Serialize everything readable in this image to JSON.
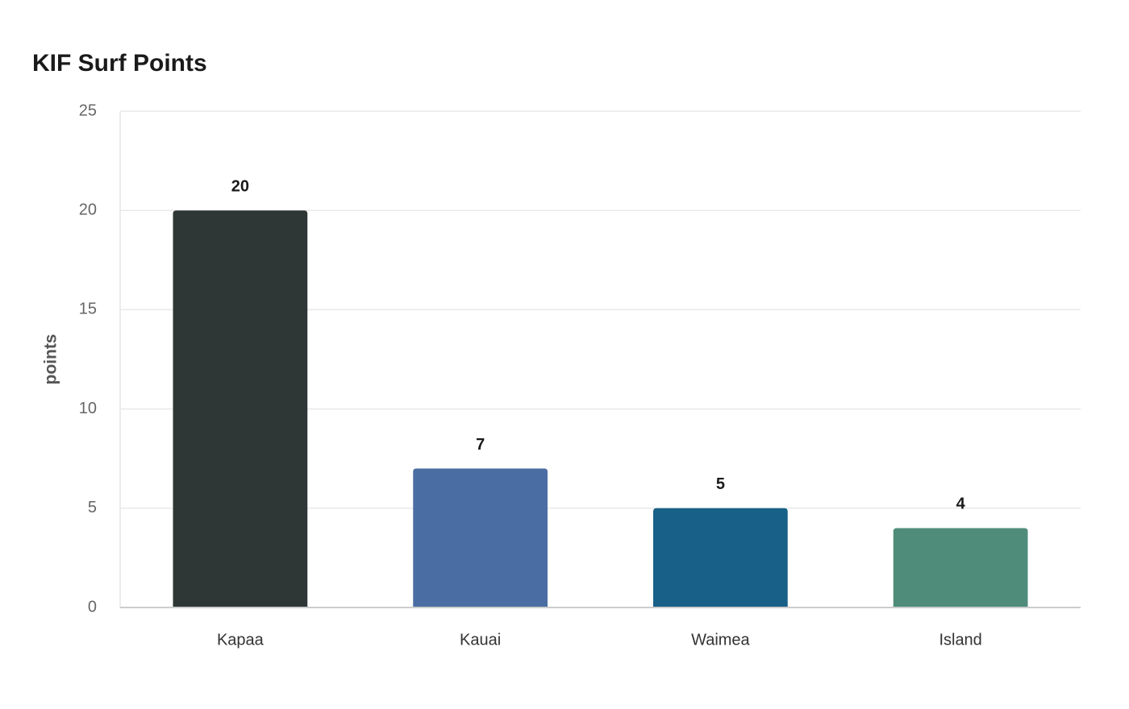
{
  "chart_data": {
    "type": "bar",
    "title": "KIF Surf Points",
    "y_label": "points",
    "categories": [
      "Kapaa",
      "Kauai",
      "Waimea",
      "Island"
    ],
    "values": [
      20,
      7,
      5,
      4
    ],
    "colors": [
      "#2e3636",
      "#4a6da3",
      "#186088",
      "#4f8c7a"
    ],
    "ylim": [
      0,
      25
    ],
    "yticks": [
      0,
      5,
      10,
      15,
      20,
      25
    ],
    "grid": true
  }
}
